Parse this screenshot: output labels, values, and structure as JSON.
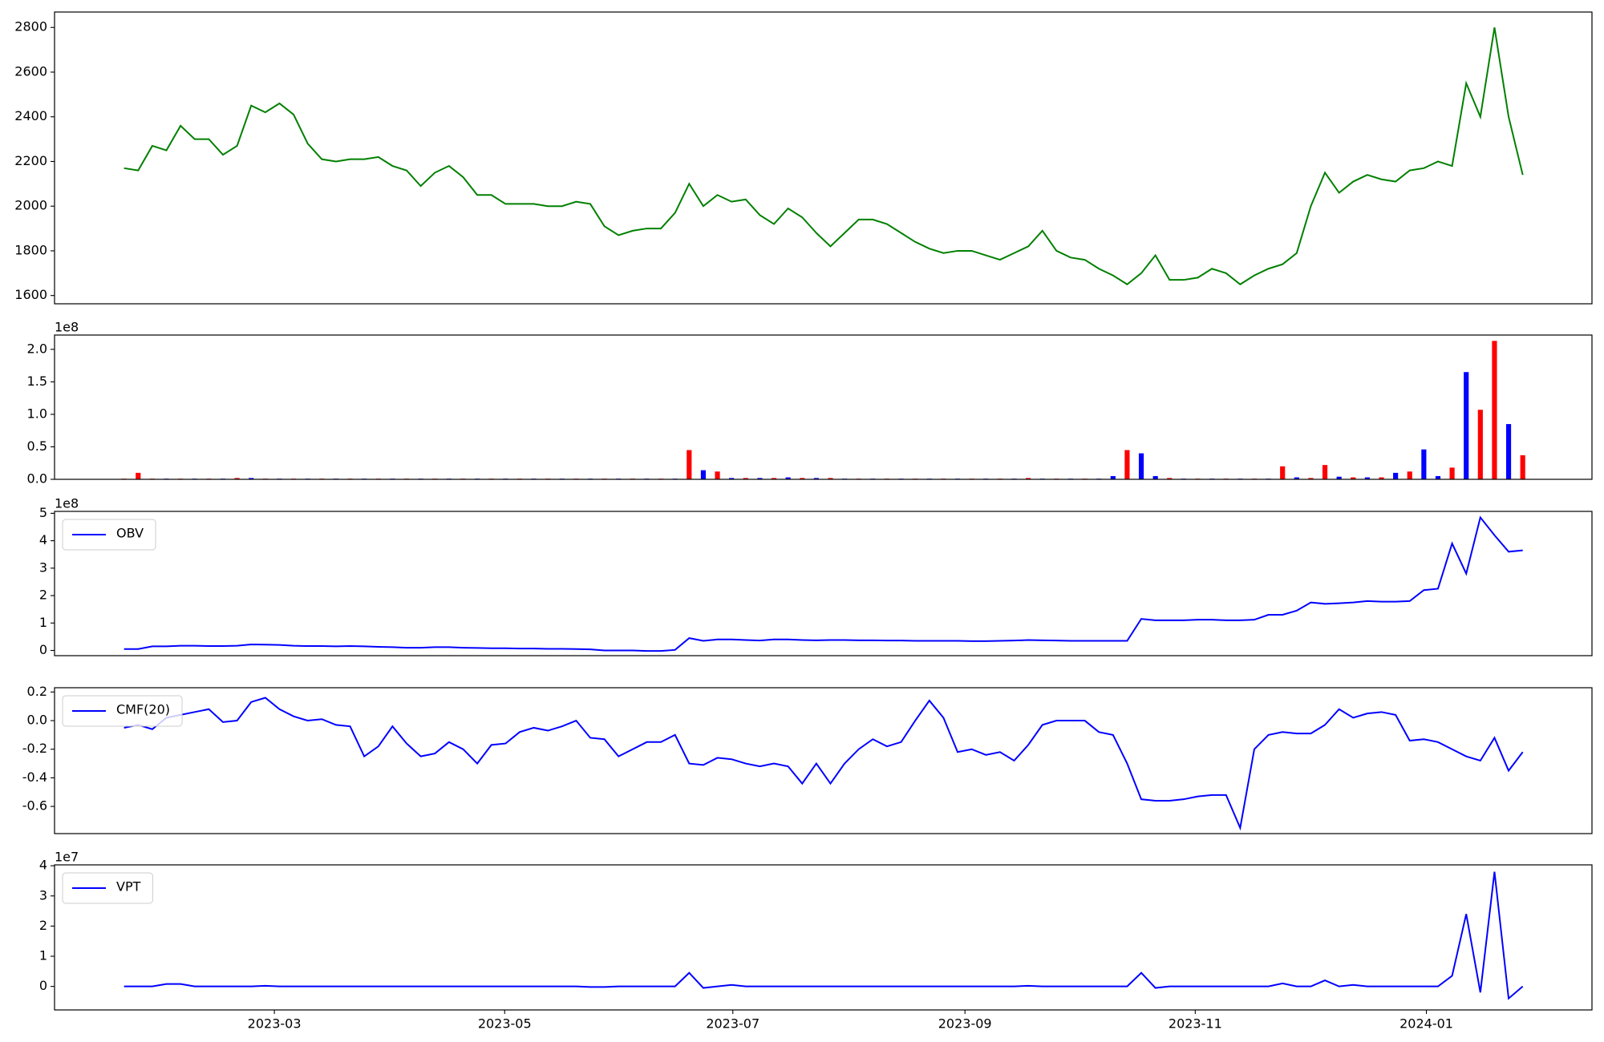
{
  "chart_data": [
    {
      "type": "line",
      "color": "#008000",
      "xlim": [
        -4.92,
        103.9
      ],
      "ylim": [
        1563,
        2869
      ],
      "yticks": [
        1600,
        1800,
        2000,
        2200,
        2400,
        2600,
        2800
      ],
      "values": [
        2170,
        2160,
        2270,
        2250,
        2360,
        2300,
        2300,
        2230,
        2270,
        2450,
        2420,
        2460,
        2410,
        2280,
        2210,
        2200,
        2210,
        2210,
        2220,
        2180,
        2160,
        2090,
        2150,
        2180,
        2130,
        2050,
        2050,
        2010,
        2010,
        2010,
        2000,
        2000,
        2020,
        2010,
        1910,
        1870,
        1890,
        1900,
        1900,
        1970,
        2100,
        2000,
        2050,
        2020,
        2030,
        1960,
        1920,
        1990,
        1950,
        1880,
        1820,
        1880,
        1940,
        1940,
        1920,
        1880,
        1840,
        1810,
        1790,
        1800,
        1800,
        1780,
        1760,
        1790,
        1820,
        1890,
        1800,
        1770,
        1760,
        1720,
        1690,
        1650,
        1700,
        1780,
        1670,
        1670,
        1680,
        1720,
        1700,
        1650,
        1690,
        1720,
        1740,
        1790,
        2000,
        2150,
        2060,
        2110,
        2140,
        2120,
        2110,
        2160,
        2170,
        2200,
        2180,
        2550,
        2400,
        2800,
        2400,
        2140
      ]
    },
    {
      "type": "bar",
      "offset_label": "1e8",
      "xlim": [
        -4.92,
        103.9
      ],
      "ylim": [
        0,
        2.22
      ],
      "yticks": [
        {
          "value": 0,
          "label": "0.0"
        },
        0.5,
        {
          "value": 1,
          "label": "1.0"
        },
        1.5,
        {
          "value": 2,
          "label": "2.0"
        }
      ],
      "values": [
        0.01,
        0.1,
        0.01,
        0.01,
        0.01,
        0.01,
        0.01,
        0.01,
        0.02,
        0.02,
        0.01,
        0.01,
        0.01,
        0.01,
        0.01,
        0.01,
        0.01,
        0.01,
        0.01,
        0.01,
        0.01,
        0.01,
        0.01,
        0.01,
        0.01,
        0.01,
        0.01,
        0.01,
        0.01,
        0.01,
        0.01,
        0.01,
        0.01,
        0.01,
        0.01,
        0.01,
        0.01,
        0.01,
        0.01,
        0.01,
        0.45,
        0.14,
        0.12,
        0.02,
        0.02,
        0.02,
        0.02,
        0.03,
        0.02,
        0.02,
        0.02,
        0.01,
        0.01,
        0.01,
        0.01,
        0.01,
        0.01,
        0.01,
        0.01,
        0.01,
        0.01,
        0.01,
        0.01,
        0.01,
        0.02,
        0.01,
        0.01,
        0.01,
        0.01,
        0.01,
        0.05,
        0.45,
        0.4,
        0.05,
        0.02,
        0.01,
        0.01,
        0.01,
        0.01,
        0.01,
        0.01,
        0.01,
        0.2,
        0.03,
        0.02,
        0.22,
        0.04,
        0.03,
        0.03,
        0.03,
        0.1,
        0.12,
        0.46,
        0.05,
        0.18,
        1.65,
        1.07,
        2.13,
        0.85,
        0.37
      ],
      "colors": [
        "red",
        "red",
        "red",
        "blue",
        "red",
        "blue",
        "red",
        "blue",
        "red",
        "blue",
        "red",
        "blue",
        "red",
        "blue",
        "red",
        "blue",
        "red",
        "blue",
        "red",
        "blue",
        "red",
        "blue",
        "red",
        "blue",
        "red",
        "blue",
        "red",
        "blue",
        "red",
        "blue",
        "red",
        "blue",
        "red",
        "blue",
        "red",
        "blue",
        "red",
        "blue",
        "red",
        "blue",
        "red",
        "blue",
        "red",
        "blue",
        "red",
        "blue",
        "red",
        "blue",
        "red",
        "blue",
        "red",
        "blue",
        "red",
        "blue",
        "red",
        "blue",
        "red",
        "blue",
        "red",
        "blue",
        "red",
        "blue",
        "red",
        "blue",
        "red",
        "blue",
        "red",
        "blue",
        "red",
        "blue",
        "blue",
        "red",
        "blue",
        "blue",
        "red",
        "blue",
        "red",
        "blue",
        "red",
        "blue",
        "red",
        "blue",
        "red",
        "blue",
        "red",
        "red",
        "blue",
        "red",
        "blue",
        "red",
        "blue",
        "red",
        "blue",
        "blue",
        "red",
        "blue",
        "red",
        "red",
        "blue",
        "red",
        "red",
        "blue"
      ]
    },
    {
      "type": "line",
      "color": "#0000ff",
      "offset_label": "1e8",
      "legend": "OBV",
      "xlim": [
        -4.92,
        103.9
      ],
      "ylim": [
        -0.19,
        5.07
      ],
      "yticks": [
        0,
        1,
        2,
        3,
        4,
        5
      ],
      "values": [
        0.05,
        0.05,
        0.15,
        0.15,
        0.17,
        0.17,
        0.16,
        0.16,
        0.17,
        0.22,
        0.21,
        0.2,
        0.17,
        0.16,
        0.16,
        0.15,
        0.16,
        0.15,
        0.13,
        0.12,
        0.1,
        0.1,
        0.12,
        0.12,
        0.1,
        0.09,
        0.08,
        0.08,
        0.07,
        0.07,
        0.06,
        0.06,
        0.05,
        0.04,
        0.0,
        0.0,
        0.0,
        -0.02,
        -0.02,
        0.02,
        0.45,
        0.35,
        0.4,
        0.4,
        0.38,
        0.36,
        0.4,
        0.4,
        0.38,
        0.37,
        0.38,
        0.38,
        0.37,
        0.37,
        0.36,
        0.36,
        0.35,
        0.35,
        0.35,
        0.35,
        0.34,
        0.34,
        0.35,
        0.36,
        0.38,
        0.37,
        0.36,
        0.35,
        0.35,
        0.35,
        0.35,
        0.35,
        1.15,
        1.1,
        1.1,
        1.1,
        1.12,
        1.12,
        1.1,
        1.1,
        1.12,
        1.3,
        1.3,
        1.45,
        1.75,
        1.7,
        1.72,
        1.75,
        1.8,
        1.78,
        1.78,
        1.8,
        2.2,
        2.25,
        3.9,
        2.8,
        4.85,
        4.2,
        3.6,
        3.65
      ]
    },
    {
      "type": "line",
      "color": "#0000ff",
      "legend": "CMF(20)",
      "xlim": [
        -4.92,
        103.9
      ],
      "ylim": [
        -0.79,
        0.23
      ],
      "yticks": [
        -0.6,
        -0.4,
        -0.2,
        {
          "value": 0,
          "label": "0.0"
        },
        0.2
      ],
      "values": [
        -0.05,
        -0.03,
        -0.06,
        0.02,
        0.04,
        0.06,
        0.08,
        -0.01,
        0.0,
        0.13,
        0.16,
        0.08,
        0.03,
        0.0,
        0.01,
        -0.03,
        -0.04,
        -0.25,
        -0.18,
        -0.04,
        -0.16,
        -0.25,
        -0.23,
        -0.15,
        -0.2,
        -0.3,
        -0.17,
        -0.16,
        -0.08,
        -0.05,
        -0.07,
        -0.04,
        0.0,
        -0.12,
        -0.13,
        -0.25,
        -0.2,
        -0.15,
        -0.15,
        -0.1,
        -0.3,
        -0.31,
        -0.26,
        -0.27,
        -0.3,
        -0.32,
        -0.3,
        -0.32,
        -0.44,
        -0.3,
        -0.44,
        -0.3,
        -0.2,
        -0.13,
        -0.18,
        -0.15,
        0.0,
        0.14,
        0.02,
        -0.22,
        -0.2,
        -0.24,
        -0.22,
        -0.28,
        -0.17,
        -0.03,
        0.0,
        0.0,
        0.0,
        -0.08,
        -0.1,
        -0.3,
        -0.55,
        -0.56,
        -0.56,
        -0.55,
        -0.53,
        -0.52,
        -0.52,
        -0.75,
        -0.2,
        -0.1,
        -0.08,
        -0.09,
        -0.09,
        -0.03,
        0.08,
        0.02,
        0.05,
        0.06,
        0.04,
        -0.14,
        -0.13,
        -0.15,
        -0.2,
        -0.25,
        -0.28,
        -0.12,
        -0.35,
        -0.22
      ]
    },
    {
      "type": "line",
      "color": "#0000ff",
      "offset_label": "1e7",
      "legend": "VPT",
      "xlim": [
        -4.92,
        103.9
      ],
      "ylim": [
        -0.78,
        4.03
      ],
      "yticks": [
        0,
        1,
        2,
        3,
        4
      ],
      "xticks": [
        {
          "value": 10.64,
          "label": "2023-03"
        },
        {
          "value": 26.94,
          "label": "2023-05"
        },
        {
          "value": 43.09,
          "label": "2023-07"
        },
        {
          "value": 59.52,
          "label": "2023-09"
        },
        {
          "value": 75.82,
          "label": "2023-11"
        },
        {
          "value": 92.18,
          "label": "2024-01"
        }
      ],
      "values": [
        0,
        0,
        0,
        0.08,
        0.08,
        0,
        0,
        0,
        0,
        0,
        0.02,
        0,
        0,
        0,
        0,
        0,
        0,
        0,
        0,
        0,
        0,
        0,
        0,
        0,
        0,
        0,
        0,
        0,
        0,
        0,
        0,
        0,
        0,
        -0.02,
        -0.02,
        0,
        0,
        0,
        0,
        0,
        0.45,
        -0.05,
        0,
        0.05,
        0,
        0,
        0,
        0,
        0,
        0,
        0,
        0,
        0,
        0,
        0,
        0,
        0,
        0,
        0,
        0,
        0,
        0,
        0,
        0,
        0.02,
        0,
        0,
        0,
        0,
        0,
        0,
        0,
        0.45,
        -0.05,
        0,
        0,
        0,
        0,
        0,
        0,
        0,
        0,
        0.1,
        0,
        0,
        0.2,
        0,
        0.05,
        0,
        0,
        0,
        0,
        0,
        0,
        0.35,
        2.4,
        -0.2,
        3.8,
        -0.4,
        0.0
      ]
    }
  ]
}
